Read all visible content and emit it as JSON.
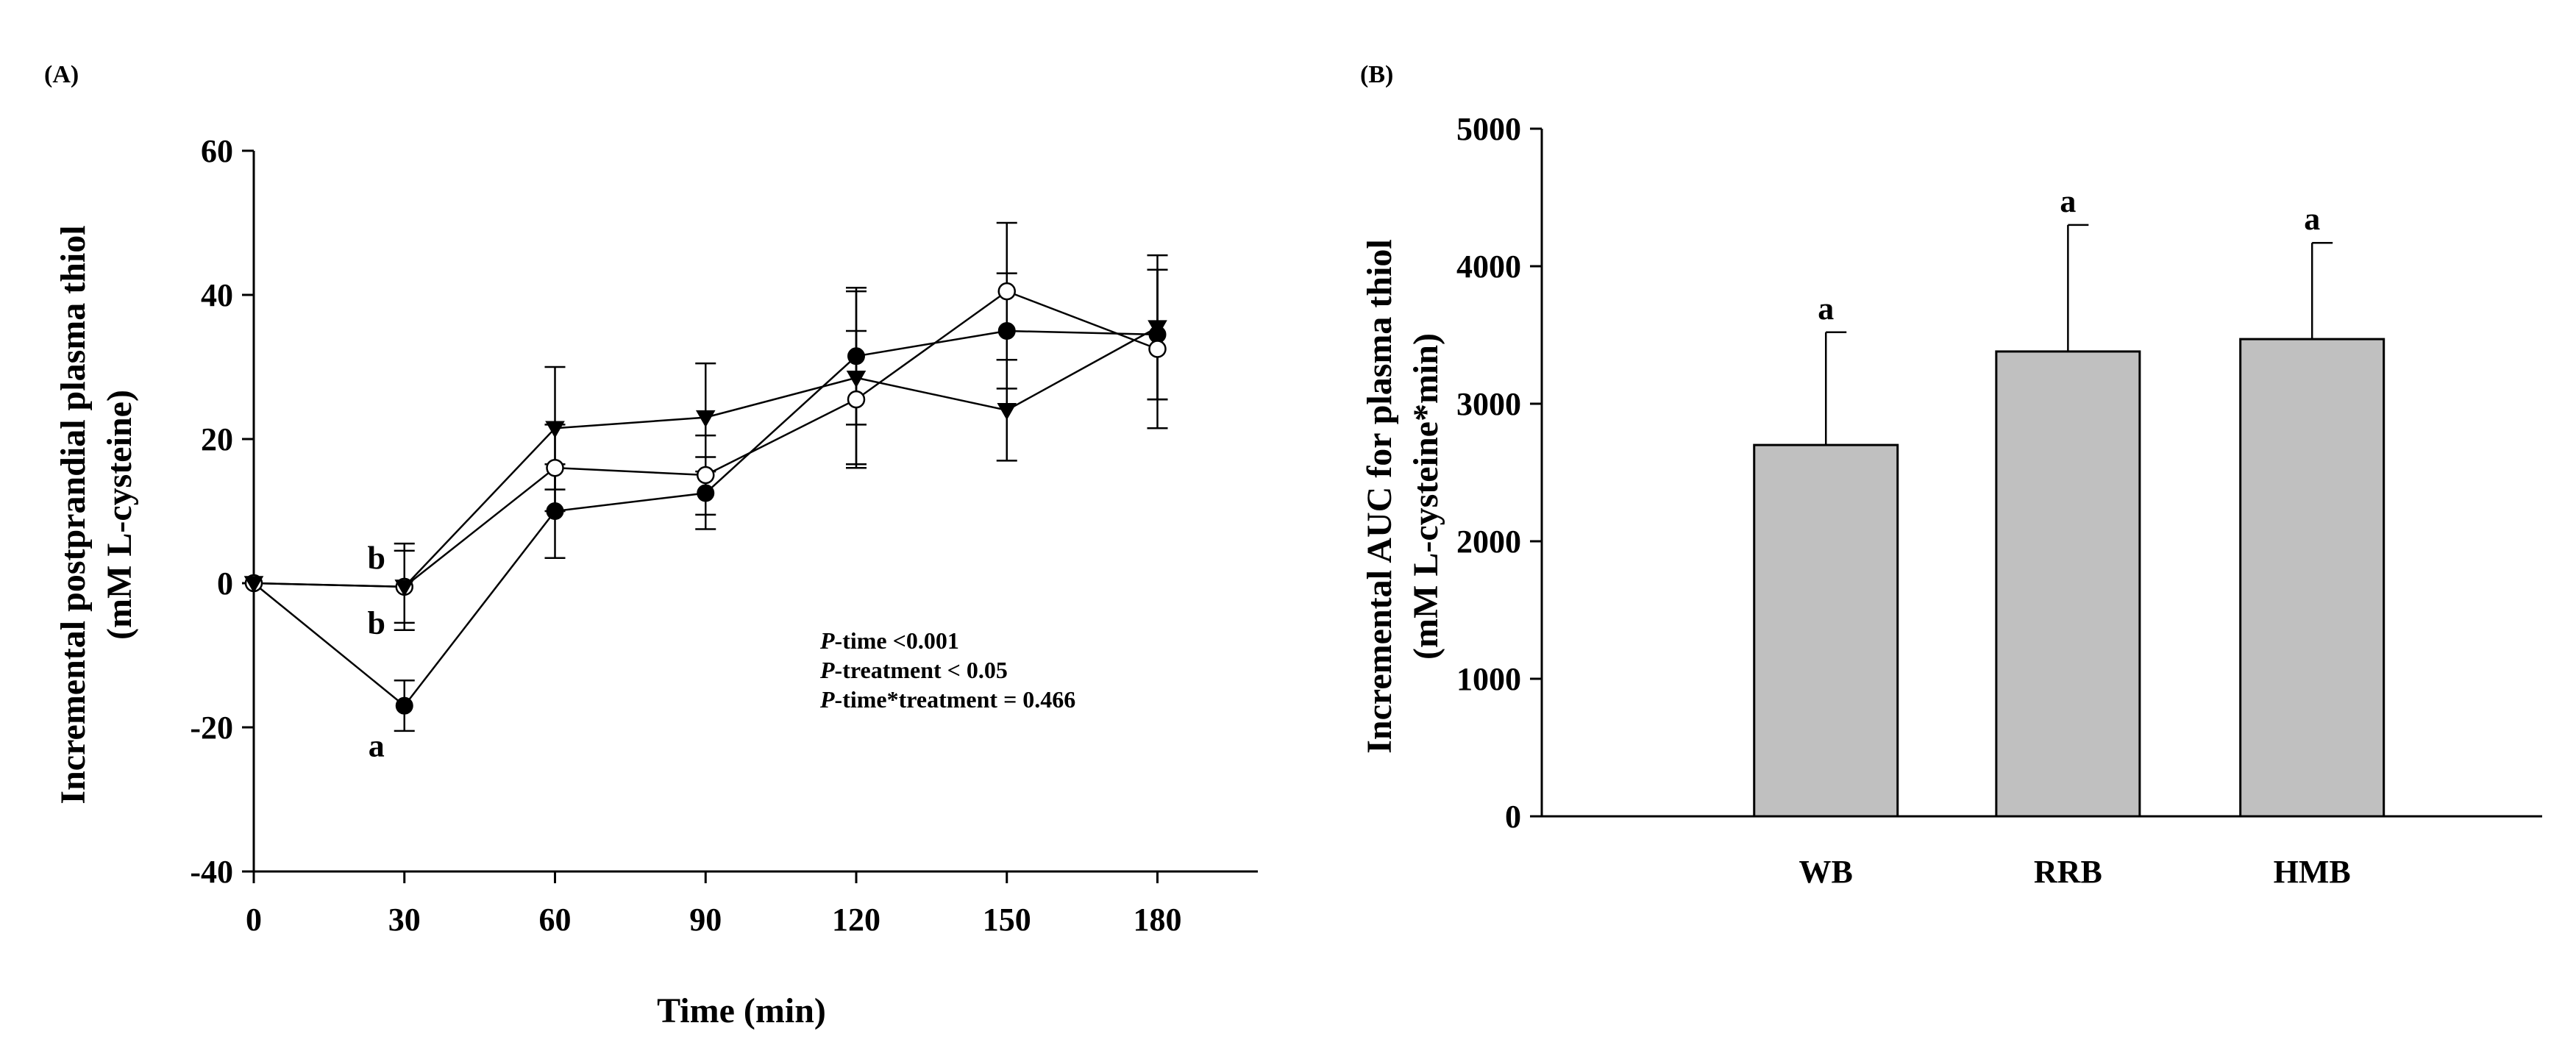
{
  "chart_data": [
    {
      "panel": "(A)",
      "type": "line",
      "xlabel": "Time (min)",
      "ylabel_lines": [
        "Incremental postprandial plasma thiol",
        "(mM L-cysteine)"
      ],
      "x": [
        0,
        30,
        60,
        90,
        120,
        150,
        180
      ],
      "xticks": [
        "0",
        "30",
        "60",
        "90",
        "120",
        "150",
        "180"
      ],
      "xlim": [
        0,
        200
      ],
      "ylim": [
        -40,
        60
      ],
      "yticks": [
        "60",
        "40",
        "20",
        "0",
        "-20",
        "-40"
      ],
      "ytick_values": [
        60,
        40,
        20,
        0,
        -20,
        -40
      ],
      "series": [
        {
          "marker": "filled-circle",
          "values": [
            0,
            -17,
            10,
            12.5,
            31.5,
            35,
            34.5
          ],
          "err": [
            0,
            3.5,
            6.5,
            5,
            9.5,
            8,
            9
          ]
        },
        {
          "marker": "open-circle",
          "values": [
            0,
            -0.5,
            16,
            15,
            25.5,
            40.5,
            32.5
          ],
          "err": [
            0,
            6,
            6,
            5.5,
            9.5,
            9.5,
            11
          ]
        },
        {
          "marker": "filled-triangle-down",
          "values": [
            0,
            -0.5,
            21.5,
            23,
            28.5,
            24,
            35.5
          ],
          "err": [
            0,
            5,
            8.5,
            7.5,
            12,
            7,
            10
          ]
        }
      ],
      "annotations": [
        {
          "text": "b",
          "x": 30,
          "y": 3.5
        },
        {
          "text": "b",
          "x": 30,
          "y": -5.5
        },
        {
          "text": "a",
          "x": 30,
          "y": -22.5
        }
      ],
      "stats": [
        {
          "p": "P",
          "text": "-time <0.001"
        },
        {
          "p": "P",
          "text": "-treatment < 0.05"
        },
        {
          "p": "P",
          "text": "-time*treatment = 0.466"
        }
      ]
    },
    {
      "panel": "(B)",
      "type": "bar",
      "categories": [
        "WB",
        "RRB",
        "HMB"
      ],
      "values": [
        2700,
        3380,
        3470
      ],
      "err": [
        820,
        920,
        700
      ],
      "labels": [
        "a",
        "a",
        "a"
      ],
      "ylabel_lines": [
        "Incremental AUC for plasma thiol",
        "(mM L-cysteine*min)"
      ],
      "ylim": [
        0,
        5000
      ],
      "yticks": [
        "5000",
        "4000",
        "3000",
        "2000",
        "1000",
        "0"
      ],
      "ytick_values": [
        5000,
        4000,
        3000,
        2000,
        1000,
        0
      ],
      "color": "#c0c0c0"
    }
  ]
}
